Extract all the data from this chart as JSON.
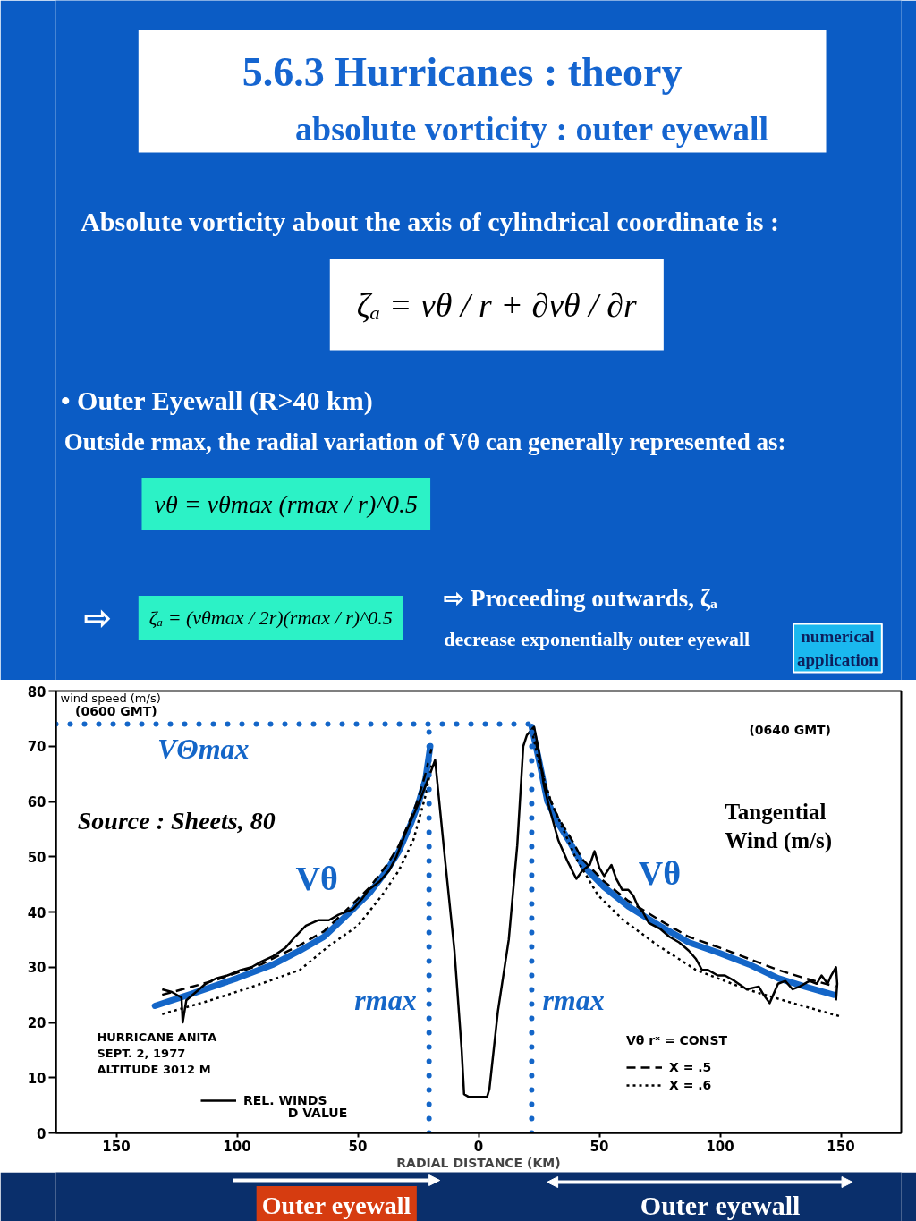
{
  "chart_data": {
    "type": "line",
    "title": "5.6.3     Hurricanes : theory",
    "subtitle": "absolute vorticity : outer eyewall",
    "xlabel": "RADIAL DISTANCE (KM)",
    "ylabel": "wind speed (m/s)",
    "legend_title": "Vθ rˣ = CONST",
    "legend": "bottom",
    "xlim": [
      -175,
      175
    ],
    "ylim": [
      0,
      80
    ],
    "xticks": [
      {
        "value": -150,
        "label": "150"
      },
      {
        "value": -100,
        "label": "100"
      },
      {
        "value": -50,
        "label": "50"
      },
      0,
      50,
      100,
      150
    ],
    "yticks": [
      0,
      10,
      20,
      30,
      40,
      50,
      60,
      70,
      80
    ],
    "annotations": [
      "Absolute vorticity about the axis of cylindrical coordinate is :",
      "ζₐ = vθ / r + ∂vθ / ∂r",
      "• Outer Eyewall (R>40 km)",
      "Outside  rmax, the radial variation of Vθ  can generally represented as:",
      "vθ = vθmax (rmax / r)^0.5",
      "⇨",
      "ζₐ = (vθmax / 2r)(rmax / r)^0.5",
      "⇨ Proceeding outwards, ζₐ",
      "decrease  exponentially outer eyewall",
      "numerical\napplication",
      "(0600 GMT)",
      "(0640 GMT)",
      "Source : Sheets, 80",
      "Tangential\nWind (m/s)",
      "Vθ",
      "Vθ",
      "HURRICANE  ANITA\nSEPT. 2, 1977\nALTITUDE  3012 M",
      "D  VALUE",
      "Outer eyewall",
      "Outer eyewall"
    ],
    "ref_lines": [
      {
        "axis": "x",
        "value": -20.5,
        "label": "rmax",
        "color": "#1466c8",
        "line_style": "dotted"
      },
      {
        "axis": "x",
        "value": 22,
        "label": "rmax",
        "color": "#1466c8",
        "line_style": "dotted"
      },
      {
        "axis": "y",
        "value": 74,
        "label": "VΘmax",
        "color": "#1466c8",
        "line_style": "dotted"
      }
    ],
    "series": [
      {
        "color": "#1466c8",
        "x": [
          -134,
          -120,
          -100,
          -85,
          -74,
          -64,
          -52,
          -45,
          -38,
          -33,
          -28,
          -25,
          -22,
          -20,
          0,
          22,
          25,
          28.5,
          33,
          38,
          43,
          52,
          62,
          75,
          87,
          100,
          112,
          124,
          135,
          147
        ],
        "values": [
          23,
          25,
          28,
          30.5,
          33,
          35.5,
          40.5,
          43.5,
          47.5,
          51,
          56,
          59.5,
          64,
          70,
          null,
          73.5,
          67.5,
          60,
          56,
          52.5,
          48.5,
          44.5,
          41,
          37.5,
          34.5,
          32.5,
          30.5,
          28,
          26.5,
          25
        ]
      },
      {
        "name": "X = .5",
        "line_style": "dashed",
        "color": "#000000",
        "x": [
          -131,
          -110,
          -90,
          -74,
          -64,
          -52,
          -45,
          -38,
          -33,
          -28,
          -25,
          -22,
          -19.5,
          0,
          22.5,
          25,
          28.5,
          33,
          38,
          43,
          52,
          62,
          75,
          87,
          100,
          112,
          124,
          135,
          148
        ],
        "values": [
          25,
          27.5,
          30.5,
          34,
          36.5,
          41.5,
          44.5,
          48.5,
          52,
          57,
          60.5,
          65,
          69.5,
          null,
          73.5,
          68,
          61.5,
          57,
          53.5,
          49.5,
          45.5,
          42,
          38.5,
          35.5,
          33.5,
          31.5,
          29.5,
          28,
          26.5
        ]
      },
      {
        "name": "X = .6",
        "line_style": "dotted",
        "color": "#000000",
        "x": [
          -131,
          -111,
          -90,
          -74,
          -61.5,
          -50,
          -40,
          -33,
          -27,
          -22,
          -19.5,
          0,
          22,
          25,
          30,
          40,
          49.5,
          60,
          74,
          90,
          111,
          130,
          150.5
        ],
        "values": [
          21.5,
          24,
          27,
          29.5,
          34,
          37.5,
          43,
          47.5,
          53,
          61,
          66.5,
          null,
          73,
          67,
          60,
          50,
          43,
          38.5,
          34,
          29.5,
          26,
          23.5,
          21
        ]
      },
      {
        "name": "REL. WINDS",
        "line_style": "solid",
        "color": "#000000",
        "x": [
          -131,
          -127,
          -123,
          -122.5,
          -121,
          -117,
          -113,
          -108.5,
          -104,
          -98.5,
          -94,
          -90,
          -85,
          -80,
          -76,
          -71.5,
          -66.5,
          -62,
          -58,
          -52,
          -48,
          -45.5,
          -41,
          -37,
          -34,
          -30.5,
          -27.5,
          -24.5,
          -20.5,
          -18,
          -14,
          -10,
          -7,
          -6,
          -4,
          0,
          3.5,
          4.5,
          8,
          12.5,
          16,
          18.5,
          20,
          23,
          25,
          27,
          29.5,
          33,
          37,
          40.5,
          43,
          46,
          48,
          50,
          52,
          55,
          57,
          59.5,
          62,
          64,
          66,
          68,
          70.5,
          75,
          79,
          83,
          87,
          90,
          92.5,
          95,
          99,
          102,
          106,
          111,
          116,
          118,
          120.5,
          122,
          124,
          127,
          130,
          133,
          137,
          140,
          142,
          144.5,
          146,
          148,
          148.5,
          148
        ],
        "values": [
          26,
          25.5,
          24.5,
          20,
          24,
          25.5,
          27,
          28,
          28.5,
          29.5,
          30,
          31,
          32,
          33.5,
          35.5,
          37.5,
          38.5,
          38.5,
          39.5,
          40.5,
          42.5,
          44,
          45.5,
          47.5,
          50,
          54,
          57,
          60,
          64.5,
          67.5,
          50,
          33,
          15,
          7,
          6.5,
          6.5,
          6.5,
          8,
          22,
          35,
          52,
          70,
          72,
          73.5,
          69,
          63,
          58.5,
          53,
          49,
          46,
          47.5,
          48.5,
          51,
          48,
          46.5,
          48.5,
          46,
          44,
          44,
          43,
          41,
          40,
          38,
          37,
          35.5,
          34.5,
          33,
          31.5,
          29.5,
          29.5,
          28.5,
          28.5,
          27.5,
          26,
          26.5,
          25,
          23.5,
          25,
          27,
          27.5,
          26,
          26.5,
          27.5,
          27,
          28.5,
          27,
          28.5,
          30,
          27,
          24
        ]
      }
    ]
  }
}
